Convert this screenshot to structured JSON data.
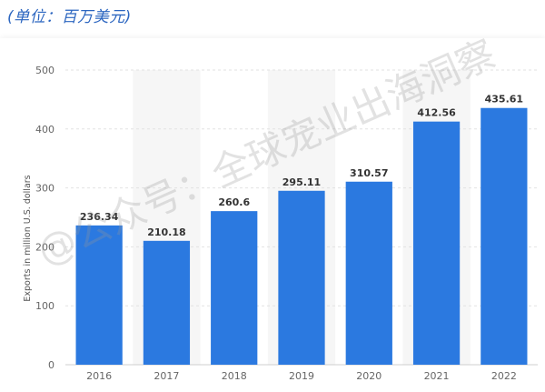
{
  "unit_caption": "(单位：百万美元)",
  "watermark": "@公众号：全球宠业出海洞察",
  "chart_data": {
    "type": "bar",
    "categories": [
      "2016",
      "2017",
      "2018",
      "2019",
      "2020",
      "2021",
      "2022"
    ],
    "values": [
      236.34,
      210.18,
      260.6,
      295.11,
      310.57,
      412.56,
      435.61
    ],
    "value_labels": [
      "236.34",
      "210.18",
      "260.6",
      "295.11",
      "310.57",
      "412.56",
      "435.61"
    ],
    "ylabel": "Exports in million U.S. dollars",
    "ylim": [
      0,
      500
    ],
    "yticks": [
      0,
      100,
      200,
      300,
      400,
      500
    ],
    "grid": true,
    "bar_color": "#2b79e0",
    "alt_band_color": "#f6f6f6",
    "grid_color": "#e2e2e2"
  }
}
